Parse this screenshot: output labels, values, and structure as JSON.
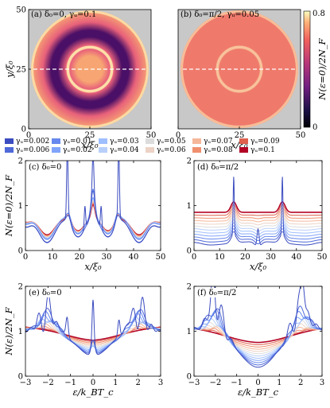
{
  "chart_data": [
    {
      "id": "a",
      "type": "heatmap",
      "annotation": "(a) δ₀=0, γᵤ=0.1",
      "xlabel": "x/ξ₀",
      "ylabel": "y/ξ₀",
      "xlim": [
        0,
        50
      ],
      "ylim": [
        0,
        50
      ],
      "xticks": [
        "0",
        "25",
        "50"
      ],
      "yticks": [
        "0",
        "25",
        "50"
      ],
      "center": [
        25,
        25
      ],
      "outer_radius": 24,
      "inner_ring_radius": 9,
      "dashed_line_y": 25,
      "colors": {
        "outer": "#f7a673",
        "mid": "#e8617a",
        "low": "#4a0f66",
        "ring": "#fde0a8",
        "background": "#c8c8c8"
      }
    },
    {
      "id": "b",
      "type": "heatmap",
      "annotation": "(b) δ₀=π/2, γᵤ=0.05",
      "xlabel": "x/ξ₀",
      "xlim": [
        0,
        50
      ],
      "ylim": [
        0,
        50
      ],
      "xticks": [
        "0",
        "25",
        "50"
      ],
      "center": [
        25,
        25
      ],
      "outer_radius": 24,
      "inner_ring_radius": 9,
      "dashed_line_y": 25,
      "colors": {
        "fill": "#ef7a6c",
        "ring": "#f8c39b",
        "background": "#c8c8c8"
      },
      "colorbar": {
        "label": "N(ε=0)/2N_F",
        "range": [
          0,
          0.8
        ],
        "ticks": [
          "0",
          "0.8"
        ]
      }
    },
    {
      "id": "legend",
      "type": "legend",
      "entries": [
        {
          "label": "γᵤ=0.002",
          "color": "#3b4cc0"
        },
        {
          "label": "γᵤ=0.006",
          "color": "#4f69d9"
        },
        {
          "label": "γᵤ=0.01",
          "color": "#6788ee"
        },
        {
          "label": "γᵤ=0.02",
          "color": "#81a4fb"
        },
        {
          "label": "γᵤ=0.03",
          "color": "#9ebeff"
        },
        {
          "label": "γᵤ=0.04",
          "color": "#b7cff9"
        },
        {
          "label": "γᵤ=0.05",
          "color": "#dddcdc"
        },
        {
          "label": "γᵤ=0.06",
          "color": "#ecd3c5"
        },
        {
          "label": "γᵤ=0.07",
          "color": "#f5b79a"
        },
        {
          "label": "γᵤ=0.08",
          "color": "#f08f6e"
        },
        {
          "label": "γᵤ=0.09",
          "color": "#de604d"
        },
        {
          "label": "γᵤ=0.1",
          "color": "#b40426"
        }
      ]
    },
    {
      "id": "c",
      "type": "line",
      "annotation": "(c) δ₀=0",
      "xlabel": "x/ξ₀",
      "ylabel": "N(ε=0)/2N_F",
      "xlim": [
        0,
        50
      ],
      "ylim": [
        0,
        2
      ],
      "xticks": [
        "0",
        "10",
        "20",
        "30",
        "40",
        "50"
      ],
      "yticks": [
        "0",
        "1",
        "2"
      ],
      "series_count": 12
    },
    {
      "id": "d",
      "type": "line",
      "annotation": "(d) δ₀=π/2",
      "xlabel": "x/ξ₀",
      "xlim": [
        0,
        50
      ],
      "ylim": [
        0,
        2
      ],
      "xticks": [
        "0",
        "10",
        "20",
        "30",
        "40",
        "50"
      ],
      "yticks": [
        "0",
        "1",
        "2"
      ],
      "series_count": 12
    },
    {
      "id": "e",
      "type": "line",
      "annotation": "(e) δ₀=0",
      "xlabel": "ε/k_BT_c",
      "ylabel": "N(ε)/2N_F",
      "xlim": [
        -3,
        3
      ],
      "ylim": [
        0,
        2
      ],
      "xticks": [
        "−3",
        "−2",
        "−1",
        "0",
        "1",
        "2",
        "3"
      ],
      "yticks": [
        "0",
        "1",
        "2"
      ],
      "series_count": 12
    },
    {
      "id": "f",
      "type": "line",
      "annotation": "(f) δ₀=π/2",
      "xlabel": "ε/k_BT_c",
      "xlim": [
        -3,
        3
      ],
      "ylim": [
        0,
        2
      ],
      "xticks": [
        "−3",
        "−2",
        "−1",
        "0",
        "1",
        "2",
        "3"
      ],
      "yticks": [
        "0",
        "1",
        "2"
      ],
      "series_count": 12
    }
  ]
}
